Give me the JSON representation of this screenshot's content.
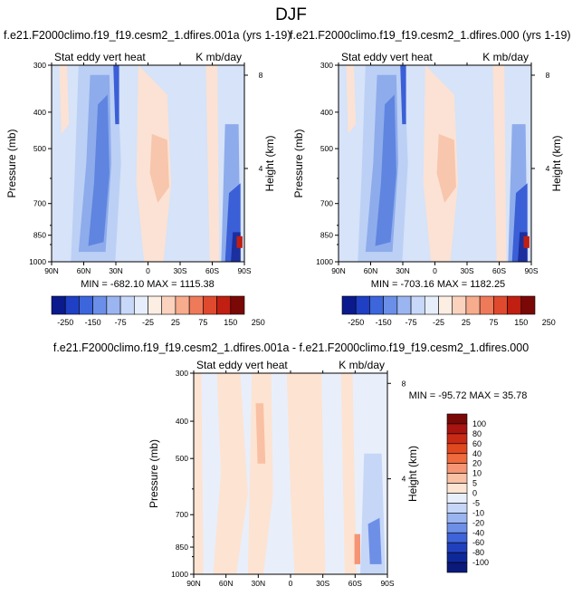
{
  "page_title": "DJF",
  "chart_data": [
    {
      "type": "heatmap",
      "title": "f.e21.F2000climo.f19_f19.cesm2_1.dfires.001a (yrs 1-19)",
      "subtitle_left": "Stat eddy vert heat",
      "subtitle_right": "K mb/day",
      "ylabel": "Pressure (mb)",
      "y2label": "Height (km)",
      "x_ticks": [
        "90N",
        "60N",
        "30N",
        "0",
        "30S",
        "60S",
        "90S"
      ],
      "y_ticks": [
        "300",
        "400",
        "500",
        "700",
        "850",
        "1000"
      ],
      "y2_ticks": [
        "8",
        "4"
      ],
      "y_scale": "log",
      "min_max_text": "MIN = -682.10   MAX = 1115.38",
      "colorbar_labels": [
        "-250",
        "-150",
        "-75",
        "-25",
        "25",
        "75",
        "150",
        "250"
      ],
      "colorbar_colors": [
        "#0a1a8c",
        "#1f3fc4",
        "#3d66dc",
        "#6b8fe8",
        "#9bb5f0",
        "#c8d8f8",
        "#e6eefc",
        "#fdeee4",
        "#fbd2bd",
        "#f6ac8d",
        "#ee7a5a",
        "#df4a2e",
        "#c01f12",
        "#7a0806"
      ]
    },
    {
      "type": "heatmap",
      "title": "f.e21.F2000climo.f19_f19.cesm2_1.dfires.000 (yrs 1-19)",
      "subtitle_left": "Stat eddy vert heat",
      "subtitle_right": "K mb/day",
      "ylabel": "Pressure (mb)",
      "y2label": "Height (km)",
      "x_ticks": [
        "90N",
        "60N",
        "30N",
        "0",
        "30S",
        "60S",
        "90S"
      ],
      "y_ticks": [
        "300",
        "400",
        "500",
        "700",
        "850",
        "1000"
      ],
      "y2_ticks": [
        "8",
        "4"
      ],
      "y_scale": "log",
      "min_max_text": "MIN = -703.16   MAX = 1182.25",
      "colorbar_labels": [
        "-250",
        "-150",
        "-75",
        "-25",
        "25",
        "75",
        "150",
        "250"
      ],
      "colorbar_colors": [
        "#0a1a8c",
        "#1f3fc4",
        "#3d66dc",
        "#6b8fe8",
        "#9bb5f0",
        "#c8d8f8",
        "#e6eefc",
        "#fdeee4",
        "#fbd2bd",
        "#f6ac8d",
        "#ee7a5a",
        "#df4a2e",
        "#c01f12",
        "#7a0806"
      ]
    },
    {
      "type": "heatmap",
      "title": "f.e21.F2000climo.f19_f19.cesm2_1.dfires.001a - f.e21.F2000climo.f19_f19.cesm2_1.dfires.000",
      "subtitle_left": "Stat eddy vert heat",
      "subtitle_right": "K mb/day",
      "ylabel": "Pressure (mb)",
      "y2label": "Height (km)",
      "x_ticks": [
        "90N",
        "60N",
        "30N",
        "0",
        "30S",
        "60S",
        "90S"
      ],
      "y_ticks": [
        "300",
        "400",
        "500",
        "700",
        "850",
        "1000"
      ],
      "y2_ticks": [
        "8",
        "4"
      ],
      "y_scale": "log",
      "min_max_text": "MIN = -95.72   MAX =  35.78",
      "colorbar_labels": [
        "100",
        "80",
        "60",
        "40",
        "20",
        "10",
        "5",
        "0",
        "-5",
        "-10",
        "-20",
        "-40",
        "-60",
        "-80",
        "-100"
      ],
      "colorbar_colors": [
        "#7a0806",
        "#a81410",
        "#c82a16",
        "#e0481f",
        "#ef6a3c",
        "#f59574",
        "#f9c0a3",
        "#fde3d2",
        "#e8effb",
        "#c6d6f7",
        "#9ab4ef",
        "#6d8fe6",
        "#3f63d8",
        "#2140bd",
        "#0f2899",
        "#0a1a7a"
      ]
    }
  ]
}
